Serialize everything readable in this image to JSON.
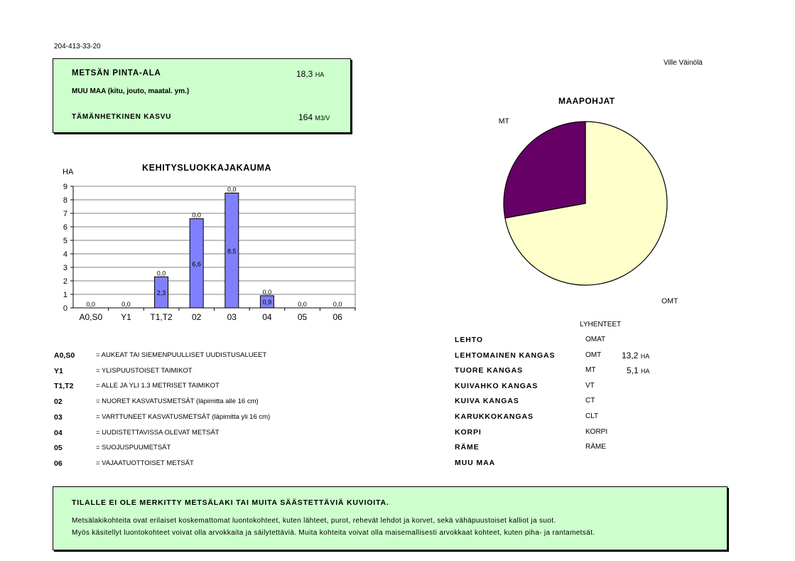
{
  "doc_id": "204-413-33-20",
  "owner": "Ville Väinölä",
  "summary": {
    "area_label": "METSÄN PINTA-ALA",
    "area_value": "18,3",
    "area_unit": "HA",
    "other_land_label": "MUU MAA (kitu, jouto, maatal. ym.)",
    "growth_label": "TÄMÄNHETKINEN KASVU",
    "growth_value": "164",
    "growth_unit": "M3/V"
  },
  "chart_data": [
    {
      "type": "bar",
      "title": "KEHITYSLUOKKAJAKAUMA",
      "ylabel": "HA",
      "xlabel": "",
      "categories": [
        "A0,S0",
        "Y1",
        "T1,T2",
        "02",
        "03",
        "04",
        "05",
        "06"
      ],
      "values": [
        0.0,
        0.0,
        2.3,
        6.6,
        8.5,
        0.9,
        0.0,
        0.0
      ],
      "data_labels_top": [
        "0,0",
        "0,0",
        "0,0",
        "0,0",
        "0,0",
        "0,0",
        "0,0",
        "0,0"
      ],
      "data_labels_inside": [
        "",
        "",
        "2,3",
        "6,6",
        "8,5",
        "0,9",
        "",
        ""
      ],
      "ylim": [
        0,
        9
      ],
      "yticks": [
        0,
        1,
        2,
        3,
        4,
        5,
        6,
        7,
        8,
        9
      ],
      "grid": true,
      "legend": "none",
      "bar_color": "#8080ff",
      "plot_bg": "#ffffff"
    },
    {
      "type": "pie",
      "title": "MAAPOHJAT",
      "slices": [
        {
          "label": "OMT",
          "value": 13.2,
          "color": "#ffffcc"
        },
        {
          "label": "MT",
          "value": 5.1,
          "color": "#660066"
        }
      ],
      "legend": "none"
    }
  ],
  "class_legend": [
    {
      "code": "A0,S0",
      "desc": "= AUKEAT TAI SIEMENPUULLISET UUDISTUSALUEET"
    },
    {
      "code": "Y1",
      "desc": "= YLISPUUSTOISET TAIMIKOT"
    },
    {
      "code": "T1,T2",
      "desc": "= ALLE JA YLI 1.3 METRISET TAIMIKOT"
    },
    {
      "code": "02",
      "desc": "= NUORET KASVATUSMETSÄT (läpimitta alle 16 cm)"
    },
    {
      "code": "03",
      "desc": "= VARTTUNEET KASVATUSMETSÄT (läpimitta yli 16 cm)"
    },
    {
      "code": "04",
      "desc": "= UUDISTETTAVISSA OLEVAT METSÄT"
    },
    {
      "code": "05",
      "desc": "= SUOJUSPUUMETSÄT"
    },
    {
      "code": "06",
      "desc": "= VAJAATUOTTOISET METSÄT"
    }
  ],
  "abbrev_header": "LYHENTEET",
  "soil_table": [
    {
      "name": "LEHTO",
      "abbr": "OMAT",
      "value": "",
      "unit": ""
    },
    {
      "name": "LEHTOMAINEN KANGAS",
      "abbr": "OMT",
      "value": "13,2",
      "unit": "HA"
    },
    {
      "name": "TUORE KANGAS",
      "abbr": "MT",
      "value": "5,1",
      "unit": "HA"
    },
    {
      "name": "KUIVAHKO KANGAS",
      "abbr": "VT",
      "value": "",
      "unit": ""
    },
    {
      "name": "KUIVA KANGAS",
      "abbr": "CT",
      "value": "",
      "unit": ""
    },
    {
      "name": "KARUKKOKANGAS",
      "abbr": "CLT",
      "value": "",
      "unit": ""
    },
    {
      "name": "KORPI",
      "abbr": "KORPI",
      "value": "",
      "unit": ""
    },
    {
      "name": "RÄME",
      "abbr": "RÄME",
      "value": "",
      "unit": ""
    },
    {
      "name": "MUU MAA",
      "abbr": "",
      "value": "",
      "unit": ""
    }
  ],
  "notice": {
    "heading": "TILALLE EI OLE MERKITTY METSÄLAKI TAI MUITA SÄÄSTETTÄVIÄ KUVIOITA.",
    "line1": "Metsälakikohteita ovat erilaiset koskemattomat luontokohteet, kuten lähteet, purot, rehevät lehdot ja korvet, sekä vähäpuustoiset kalliot ja suot.",
    "line2": "Myös käsitellyt luontokohteet voivat olla arvokkaita ja säilytettäviä. Muita kohteita voivat olla maisemallisesti arvokkaat kohteet, kuten piha- ja rantametsät."
  }
}
